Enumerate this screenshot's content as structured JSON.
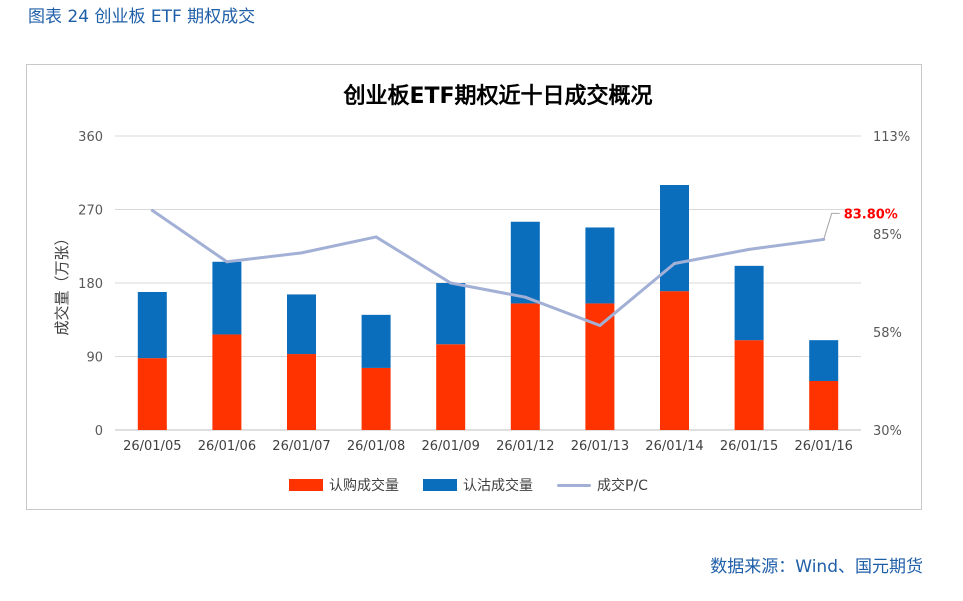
{
  "caption": "图表 24  创业板 ETF 期权成交",
  "source": "数据来源：Wind、国元期货",
  "colors": {
    "call": "#ff3300",
    "put": "#0a6ebd",
    "pc_line": "#a3b0d6",
    "grid": "#d9d9d9",
    "highlight": "#ff0000"
  },
  "chart_data": {
    "type": "bar",
    "title": "创业板ETF期权近十日成交概况",
    "ylabel": "成交量（万张）",
    "categories": [
      "26/01/05",
      "26/01/06",
      "26/01/07",
      "26/01/08",
      "26/01/09",
      "26/01/12",
      "26/01/13",
      "26/01/14",
      "26/01/15",
      "26/01/16"
    ],
    "ylim": [
      0,
      360
    ],
    "yticks": [
      "0",
      "90",
      "180",
      "270",
      "360"
    ],
    "y2lim": [
      30,
      113
    ],
    "y2ticks": [
      "30%",
      "58%",
      "85%",
      "113%"
    ],
    "stacked": true,
    "series": [
      {
        "name": "认购成交量",
        "axis": "left",
        "values": [
          88,
          117,
          93,
          76,
          105,
          155,
          155,
          170,
          110,
          60
        ]
      },
      {
        "name": "认沽成交量",
        "axis": "left",
        "values": [
          81,
          89,
          73,
          65,
          75,
          100,
          93,
          130,
          91,
          50
        ]
      },
      {
        "name": "成交P/C",
        "axis": "right",
        "type": "line",
        "values": [
          92.0,
          77.5,
          80.0,
          84.5,
          71.5,
          67.5,
          59.5,
          77.0,
          81.0,
          83.8
        ]
      }
    ],
    "last_label": "83.80%",
    "legend_position": "bottom"
  }
}
